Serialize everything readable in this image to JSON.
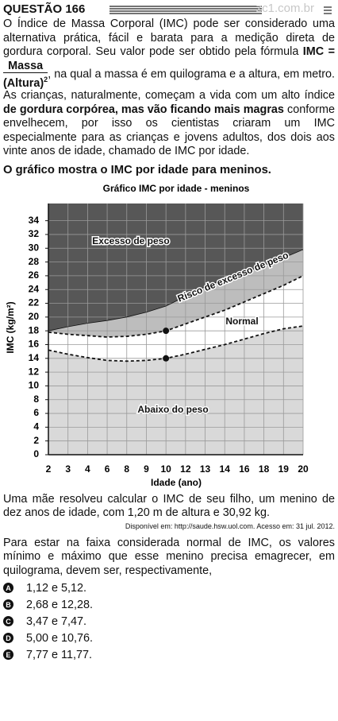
{
  "header": {
    "title": "QUESTÃO 166",
    "watermark": "zc1.com.br"
  },
  "intro": {
    "text_1": "O Índice de Massa Corporal (IMC) pode ser considerado uma alternativa prática, fácil e barata para a medição direta de gordura corporal. Seu valor pode ser obtido pela fórmula ",
    "formula_lhs": "IMC =",
    "numerator": "Massa",
    "denominator": "(Altura)",
    "exponent": "2",
    "text_2": ", na qual a massa é em quilograma e a altura, em metro. As crianças, naturalmente, começam a vida com um alto índice ",
    "bold_text": "de gordura corpórea, mas vão ficando mais magras",
    "text_3": " conforme envelhecem, por isso os cientistas criaram um IMC especialmente para as crianças e jovens adultos, dos dois aos vinte anos de idade, chamado de IMC por idade."
  },
  "graph_intro": "O gráfico mostra o IMC por idade para meninos.",
  "chart_data": {
    "type": "area",
    "title": "Gráfico IMC por idade - meninos",
    "x_label": "Idade (ano)",
    "y_label": "IMC (kg/m²)",
    "categories": [
      "2",
      "3",
      "4",
      "6",
      "8",
      "9",
      "10",
      "12",
      "13",
      "14",
      "16",
      "18",
      "19",
      "20"
    ],
    "series": [
      {
        "values": [
          15.2,
          14.6,
          14.1,
          13.7,
          13.6,
          13.7,
          14.0,
          14.6,
          15.3,
          16.0,
          16.8,
          17.6,
          18.3,
          18.7
        ],
        "dashed": true
      },
      {
        "values": [
          17.8,
          17.5,
          17.3,
          17.1,
          17.2,
          17.5,
          18.0,
          19.0,
          20.0,
          21.0,
          22.2,
          23.4,
          24.6,
          26.0
        ],
        "dashed": true
      },
      {
        "values": [
          18.0,
          18.6,
          19.1,
          19.5,
          20.0,
          20.7,
          21.6,
          23.0,
          24.4,
          25.5,
          26.5,
          27.5,
          28.6,
          29.8
        ],
        "dashed": false
      }
    ],
    "regions": [
      {
        "label": "Abaixo do peso",
        "color": "#d9d9d9"
      },
      {
        "label": "Normal",
        "color": "#ffffff"
      },
      {
        "label": "Risco de excesso de peso",
        "color": "#bdbdbd"
      },
      {
        "label": "Excesso de peso",
        "color": "#575757"
      }
    ],
    "points": [
      {
        "x": "10",
        "y": 18
      },
      {
        "x": "10",
        "y": 14
      }
    ],
    "ylim": [
      0,
      36.5
    ],
    "yticks": [
      0,
      2,
      4,
      6,
      8,
      10,
      12,
      14,
      16,
      18,
      20,
      22,
      24,
      26,
      28,
      30,
      32,
      34
    ],
    "grid": true
  },
  "scenario": "Uma mãe resolveu calcular o IMC de seu filho, um menino de dez anos de idade, com 1,20 m de altura e 30,92 kg.",
  "source": "Disponível em: http://saude.hsw.uol.com. Acesso em: 31 jul. 2012.",
  "question": "Para estar na faixa considerada normal de IMC, os valores mínimo e máximo que esse menino precisa emagrecer, em quilograma, devem ser, respectivamente,",
  "options": [
    {
      "letter": "A",
      "text": "1,12 e 5,12."
    },
    {
      "letter": "B",
      "text": "2,68 e 12,28."
    },
    {
      "letter": "C",
      "text": "3,47 e 7,47."
    },
    {
      "letter": "D",
      "text": "5,00 e 10,76."
    },
    {
      "letter": "E",
      "text": "7,77 e 11,77."
    }
  ]
}
